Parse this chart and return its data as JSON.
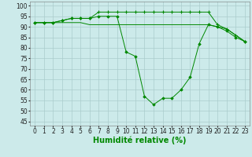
{
  "line1_x": [
    0,
    1,
    2,
    3,
    4,
    5,
    6,
    7,
    8,
    9,
    10,
    11,
    12,
    13,
    14,
    15,
    16,
    17,
    18,
    19,
    20,
    21,
    22,
    23
  ],
  "line1_y": [
    92,
    92,
    92,
    93,
    94,
    94,
    94,
    97,
    97,
    97,
    97,
    97,
    97,
    97,
    97,
    97,
    97,
    97,
    97,
    97,
    91,
    89,
    86,
    83
  ],
  "line2_x": [
    0,
    1,
    2,
    3,
    4,
    5,
    6,
    7,
    8,
    9,
    10,
    11,
    12,
    13,
    14,
    15,
    16,
    17,
    18,
    19,
    20,
    21,
    22,
    23
  ],
  "line2_y": [
    92,
    92,
    92,
    93,
    94,
    94,
    94,
    95,
    95,
    95,
    78,
    76,
    57,
    53,
    56,
    56,
    60,
    66,
    82,
    91,
    90,
    88,
    85,
    83
  ],
  "line3_x": [
    0,
    1,
    2,
    3,
    4,
    5,
    6,
    7,
    8,
    9,
    10,
    11,
    12,
    13,
    14,
    15,
    16,
    17,
    18,
    19,
    20,
    21,
    22,
    23
  ],
  "line3_y": [
    92,
    92,
    92,
    92,
    92,
    92,
    91,
    91,
    91,
    91,
    91,
    91,
    91,
    91,
    91,
    91,
    91,
    91,
    91,
    91,
    90,
    89,
    86,
    83
  ],
  "xlabel": "Humidité relative (%)",
  "xlim": [
    -0.5,
    23.5
  ],
  "ylim": [
    43,
    102
  ],
  "yticks": [
    45,
    50,
    55,
    60,
    65,
    70,
    75,
    80,
    85,
    90,
    95,
    100
  ],
  "xticks": [
    0,
    1,
    2,
    3,
    4,
    5,
    6,
    7,
    8,
    9,
    10,
    11,
    12,
    13,
    14,
    15,
    16,
    17,
    18,
    19,
    20,
    21,
    22,
    23
  ],
  "bg_color": "#cceaea",
  "grid_color": "#aacccc",
  "line_color": "#008800",
  "xlabel_fontsize": 7,
  "tick_fontsize": 5.5
}
